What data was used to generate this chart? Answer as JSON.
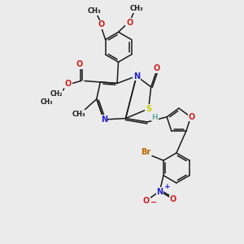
{
  "bg": "#ebebeb",
  "bc": "#1a1a1a",
  "lw": 1.1,
  "N_col": "#2222cc",
  "O_col": "#cc2222",
  "S_col": "#cccc00",
  "Br_col": "#bb6600",
  "H_col": "#66aaaa",
  "C_col": "#1a1a1a",
  "figsize": [
    3.0,
    3.0
  ],
  "dpi": 100,
  "xlim": [
    0,
    10
  ],
  "ylim": [
    0,
    10
  ]
}
